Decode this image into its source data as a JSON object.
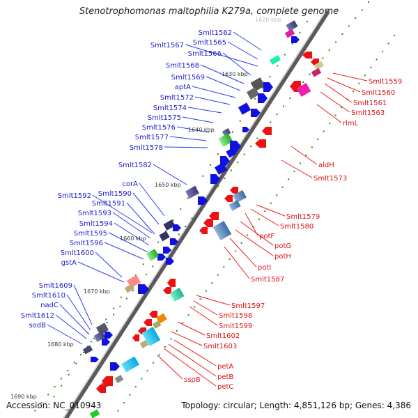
{
  "title": "Stenotrophomonas maltophilia K279a, complete genome",
  "footer": {
    "accession": "Accession: NC_010943",
    "summary": "Topology: circular; Length: 4,851,126 bp; Genes: 4,386"
  },
  "scale_labels": [
    "1620 kbp",
    "1630 kbp",
    "1640 kbp",
    "1650 kbp",
    "1660 kbp",
    "1670 kbp",
    "1680 kbp",
    "1690 kbp"
  ],
  "genes_forward": [
    "Smlt1562",
    "Smlt1565",
    "Smlt1567",
    "Smlt1566",
    "Smlt1568",
    "Smlt1569",
    "aptA",
    "Smlt1572",
    "Smlt1574",
    "Smlt1575",
    "Smlt1576",
    "Smlt1577",
    "Smlt1578",
    "Smlt1582",
    "corA",
    "Smlt1590",
    "Smlt1592",
    "Smlt1591",
    "Smlt1593",
    "Smlt1594",
    "Smlt1595",
    "Smlt1596",
    "Smlt1600",
    "gstA",
    "Smlt1609",
    "Smlt1610",
    "nadC",
    "Smlt1612",
    "sodB"
  ],
  "genes_reverse": [
    "Smlt1559",
    "Smlt1560",
    "Smlt1561",
    "Smlt1563",
    "rlmL",
    "aldH",
    "Smlt1573",
    "Smlt1579",
    "Smlt1580",
    "potF",
    "potG",
    "potH",
    "potI",
    "Smlt1587",
    "Smlt1597",
    "Smlt1598",
    "Smlt1599",
    "Smlt1602",
    "Smlt1603",
    "petA",
    "petB",
    "petC",
    "sspB"
  ],
  "colors": {
    "forward_label": "#1a1acc",
    "reverse_label": "#dd1111",
    "forward_gene": "#1010e0",
    "reverse_gene": "#ee1111",
    "backbone": "#8a8a8a",
    "gc_dots": "#1f8a1f"
  }
}
